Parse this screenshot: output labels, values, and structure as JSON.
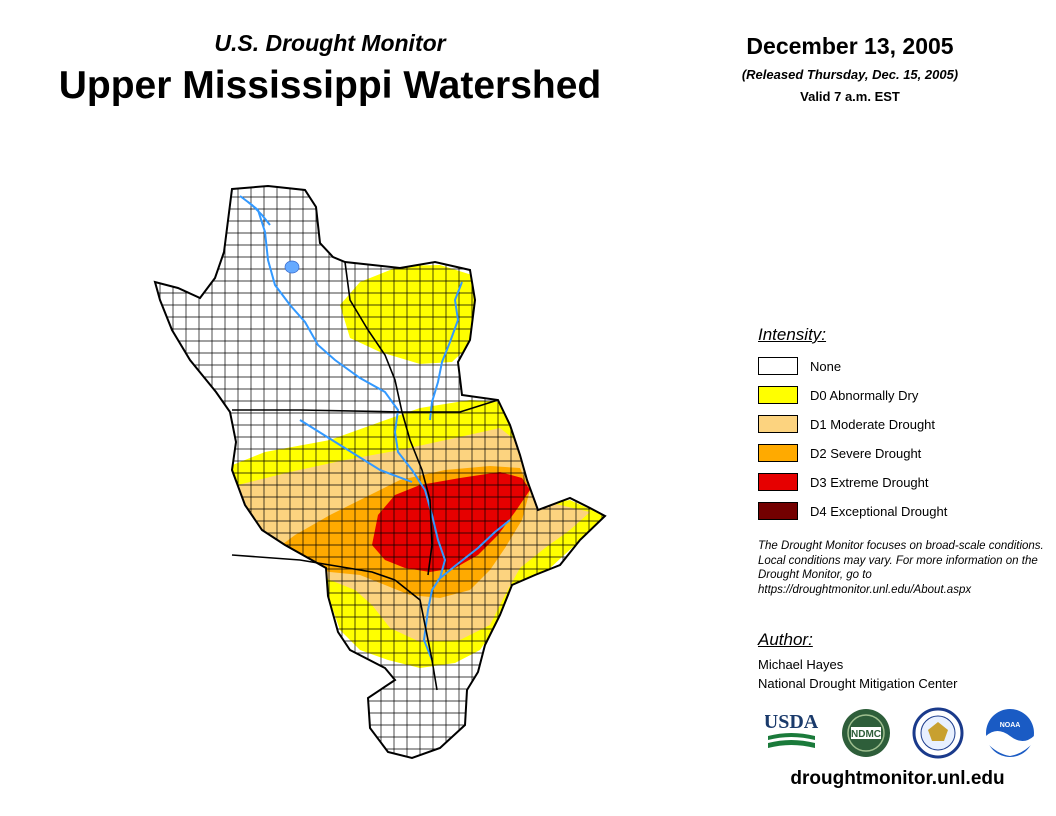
{
  "header": {
    "subtitle": "U.S. Drought Monitor",
    "title": "Upper Mississippi Watershed",
    "date": "December 13, 2005",
    "released": "(Released Thursday, Dec. 15, 2005)",
    "valid": "Valid 7 a.m. EST"
  },
  "legend": {
    "heading": "Intensity:",
    "items": [
      {
        "label": "None",
        "color": "#ffffff"
      },
      {
        "label": "D0 Abnormally Dry",
        "color": "#ffff00"
      },
      {
        "label": "D1 Moderate Drought",
        "color": "#fcd37f"
      },
      {
        "label": "D2 Severe Drought",
        "color": "#ffaa00"
      },
      {
        "label": "D3 Extreme Drought",
        "color": "#e60000"
      },
      {
        "label": "D4 Exceptional Drought",
        "color": "#730000"
      }
    ]
  },
  "note": "The Drought Monitor focuses on broad-scale conditions. Local conditions may vary. For more information on the Drought Monitor, go to https://droughtmonitor.unl.edu/About.aspx",
  "author": {
    "heading": "Author:",
    "name": "Michael Hayes",
    "org": "National Drought Mitigation Center"
  },
  "logos": {
    "usda": "USDA",
    "ndmc": "NDMC",
    "noaa": "NOAA"
  },
  "site": "droughtmonitor.unl.edu",
  "colors": {
    "river": "#3399ff",
    "boundary": "#000000"
  }
}
